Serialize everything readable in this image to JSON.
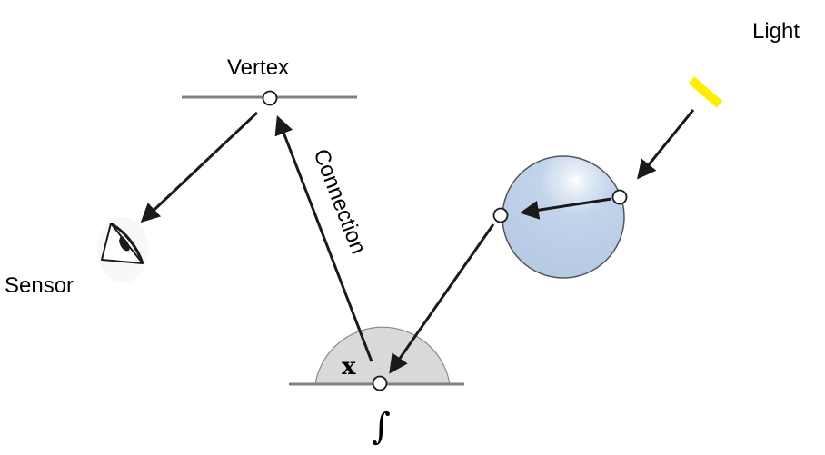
{
  "labels": {
    "light": "Light",
    "vertex": "Vertex",
    "sensor": "Sensor",
    "connection": "Connection",
    "x": "x",
    "integral": "∫"
  },
  "colors": {
    "background": "#ffffff",
    "arrow": "#1a1a1a",
    "surface_line": "#808080",
    "hemisphere_fill": "#d9d9d9",
    "sphere_fill": "#bcd0e8",
    "sphere_stroke": "#555555",
    "light_source": "#ffee00",
    "node_fill": "#ffffff"
  },
  "icons": {
    "sensor": "eye-icon",
    "light": "light-source-bar"
  }
}
